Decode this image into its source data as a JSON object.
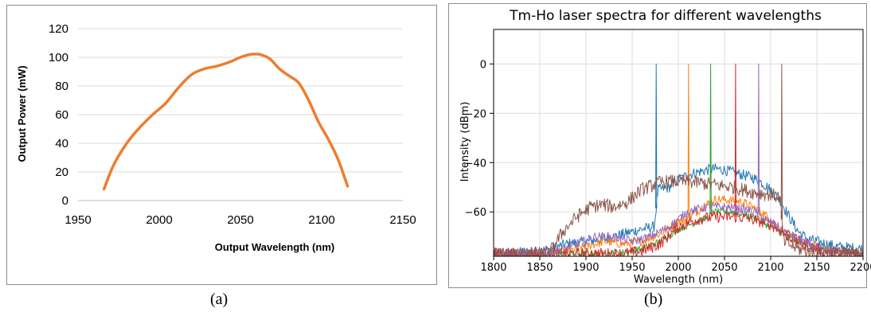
{
  "captions": {
    "a": "(a)",
    "b": "(b)"
  },
  "chart_data": [
    {
      "type": "line",
      "title": "",
      "xlabel": "Output Wavelength (nm)",
      "ylabel": "Output Power (mW)",
      "xlim": [
        1950,
        2150
      ],
      "ylim": [
        0,
        120
      ],
      "xticks": [
        "1950",
        "2000",
        "2050",
        "2100",
        "2150"
      ],
      "yticks": [
        "0",
        "20",
        "40",
        "60",
        "80",
        "100",
        "120"
      ],
      "grid": "horizontal",
      "colors": {
        "line": "#ED7D31",
        "grid": "#d9d9d9"
      },
      "series": [
        {
          "x": [
            1966,
            1972,
            1980,
            1988,
            1996,
            2004,
            2012,
            2020,
            2028,
            2036,
            2044,
            2050,
            2056,
            2062,
            2068,
            2074,
            2080,
            2086,
            2092,
            2098,
            2104,
            2110,
            2116
          ],
          "values": [
            8,
            25,
            40,
            51,
            60,
            68,
            79,
            88,
            92,
            94,
            97,
            100,
            102,
            102,
            99,
            92,
            87,
            82,
            70,
            55,
            43,
            29,
            10
          ]
        }
      ]
    },
    {
      "type": "line",
      "title": "Tm-Ho laser spectra for different wavelengths",
      "xlabel": "Wavelength (nm)",
      "ylabel": "Intensity (dBm)",
      "xlim": [
        1800,
        2200
      ],
      "ylim": [
        -78,
        14
      ],
      "xticks": [
        "1800",
        "1850",
        "1900",
        "1950",
        "2000",
        "2050",
        "2100",
        "2150",
        "2200"
      ],
      "yticks": [
        "0",
        "−20",
        "−40",
        "−60"
      ],
      "grid": "both",
      "colors": {
        "grid": "#dddddd"
      },
      "series": [
        {
          "peak": 1976,
          "color": "#1f77b4",
          "noise": 2.2,
          "x": [
            1800,
            1850,
            1880,
            1900,
            1920,
            1940,
            1960,
            1974,
            1978,
            1990,
            2000,
            2010,
            2020,
            2030,
            2040,
            2050,
            2060,
            2070,
            2080,
            2090,
            2100,
            2110,
            2120,
            2130,
            2140,
            2150,
            2160,
            2170,
            2200
          ],
          "values": [
            -77,
            -76,
            -73,
            -72,
            -71,
            -69,
            -67,
            -66,
            -51,
            -50,
            -47,
            -45,
            -44,
            -43,
            -42.5,
            -43,
            -44,
            -45,
            -46,
            -48,
            -51,
            -55,
            -62,
            -68,
            -71,
            -72,
            -73,
            -74,
            -75
          ]
        },
        {
          "peak": 2011,
          "color": "#ff7f0e",
          "noise": 1.8,
          "x": [
            1800,
            1850,
            1880,
            1900,
            1920,
            1940,
            1960,
            1980,
            2000,
            2009,
            2013,
            2020,
            2030,
            2040,
            2050,
            2060,
            2070,
            2080,
            2090,
            2100,
            2110,
            2130,
            2150,
            2170,
            2200
          ],
          "values": [
            -77,
            -77,
            -76,
            -74,
            -72,
            -73,
            -72,
            -69,
            -64,
            -63,
            -62,
            -60,
            -57,
            -55,
            -55,
            -55.5,
            -56,
            -58,
            -60,
            -63,
            -67,
            -72,
            -74,
            -76,
            -77
          ]
        },
        {
          "peak": 2035,
          "color": "#2ca02c",
          "noise": 1.4,
          "x": [
            1800,
            1850,
            1900,
            1940,
            1960,
            1980,
            2000,
            2020,
            2033,
            2037,
            2050,
            2060,
            2070,
            2080,
            2090,
            2100,
            2120,
            2140,
            2170,
            2200
          ],
          "values": [
            -77,
            -77,
            -77,
            -76.5,
            -75,
            -72,
            -67,
            -64,
            -62,
            -60,
            -60,
            -60,
            -61,
            -62,
            -64,
            -66,
            -70,
            -74,
            -76,
            -77
          ]
        },
        {
          "peak": 2062,
          "color": "#d62728",
          "noise": 2.4,
          "x": [
            1800,
            1850,
            1900,
            1940,
            1960,
            1980,
            2000,
            2020,
            2040,
            2060,
            2064,
            2080,
            2100,
            2120,
            2140,
            2160,
            2200
          ],
          "values": [
            -77,
            -77,
            -77,
            -77,
            -76,
            -73,
            -66,
            -63,
            -62,
            -62,
            -62,
            -63,
            -65,
            -70,
            -74,
            -76,
            -77
          ]
        },
        {
          "peak": 2087,
          "color": "#9467bd",
          "noise": 1.8,
          "x": [
            1800,
            1860,
            1890,
            1910,
            1930,
            1950,
            1970,
            1990,
            2010,
            2030,
            2050,
            2070,
            2085,
            2089,
            2100,
            2120,
            2140,
            2160,
            2200
          ],
          "values": [
            -77,
            -77,
            -73,
            -70,
            -70,
            -72,
            -70,
            -66,
            -60,
            -58,
            -58,
            -59,
            -60,
            -62,
            -64,
            -69,
            -73,
            -76,
            -77
          ]
        },
        {
          "peak": 2112,
          "color": "#8c564b",
          "noise": 2.8,
          "x": [
            1800,
            1860,
            1875,
            1890,
            1905,
            1918,
            1930,
            1945,
            1960,
            1980,
            2000,
            2020,
            2040,
            2060,
            2080,
            2100,
            2110,
            2114,
            2130,
            2150,
            2200
          ],
          "values": [
            -77,
            -77,
            -68,
            -62,
            -58,
            -57,
            -58,
            -56,
            -51,
            -48,
            -47.5,
            -48,
            -49,
            -50,
            -52,
            -53,
            -54,
            -72,
            -75,
            -77,
            -77
          ]
        }
      ]
    }
  ]
}
